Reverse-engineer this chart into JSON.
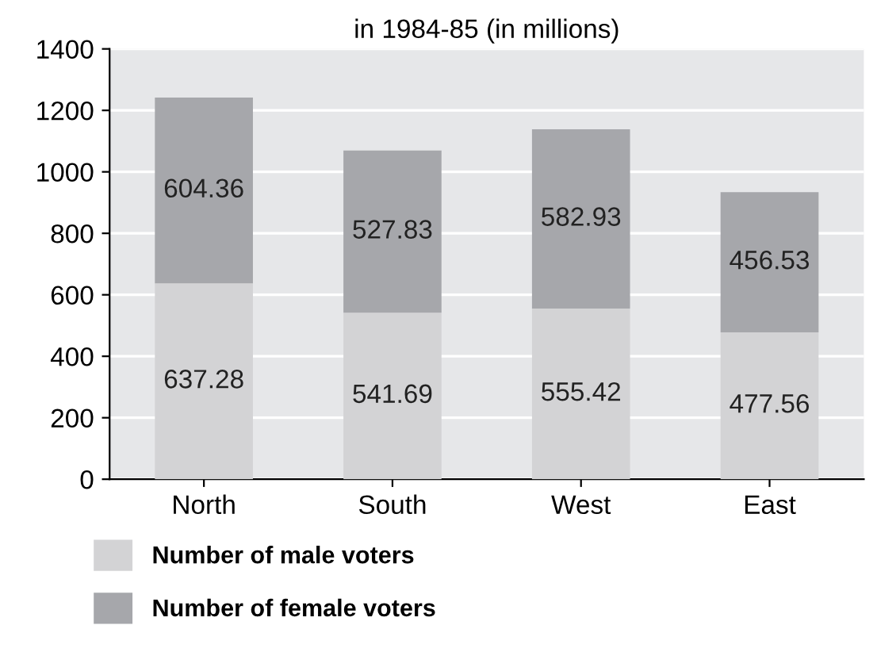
{
  "chart_data": {
    "type": "bar",
    "title": "in 1984-85 (in millions)",
    "categories": [
      "North",
      "South",
      "West",
      "East"
    ],
    "stacked": true,
    "series": [
      {
        "name": "Number of male voters",
        "color": "#d3d3d5",
        "values": [
          637.28,
          541.69,
          555.42,
          477.56
        ]
      },
      {
        "name": "Number of female voters",
        "color": "#a6a7ab",
        "values": [
          604.36,
          527.83,
          582.93,
          456.53
        ]
      }
    ],
    "data_labels": true,
    "ylim": [
      0,
      1400
    ],
    "yticks": [
      0,
      200,
      400,
      600,
      800,
      1000,
      1200,
      1400
    ],
    "grid": "y",
    "legend": "bottom"
  }
}
